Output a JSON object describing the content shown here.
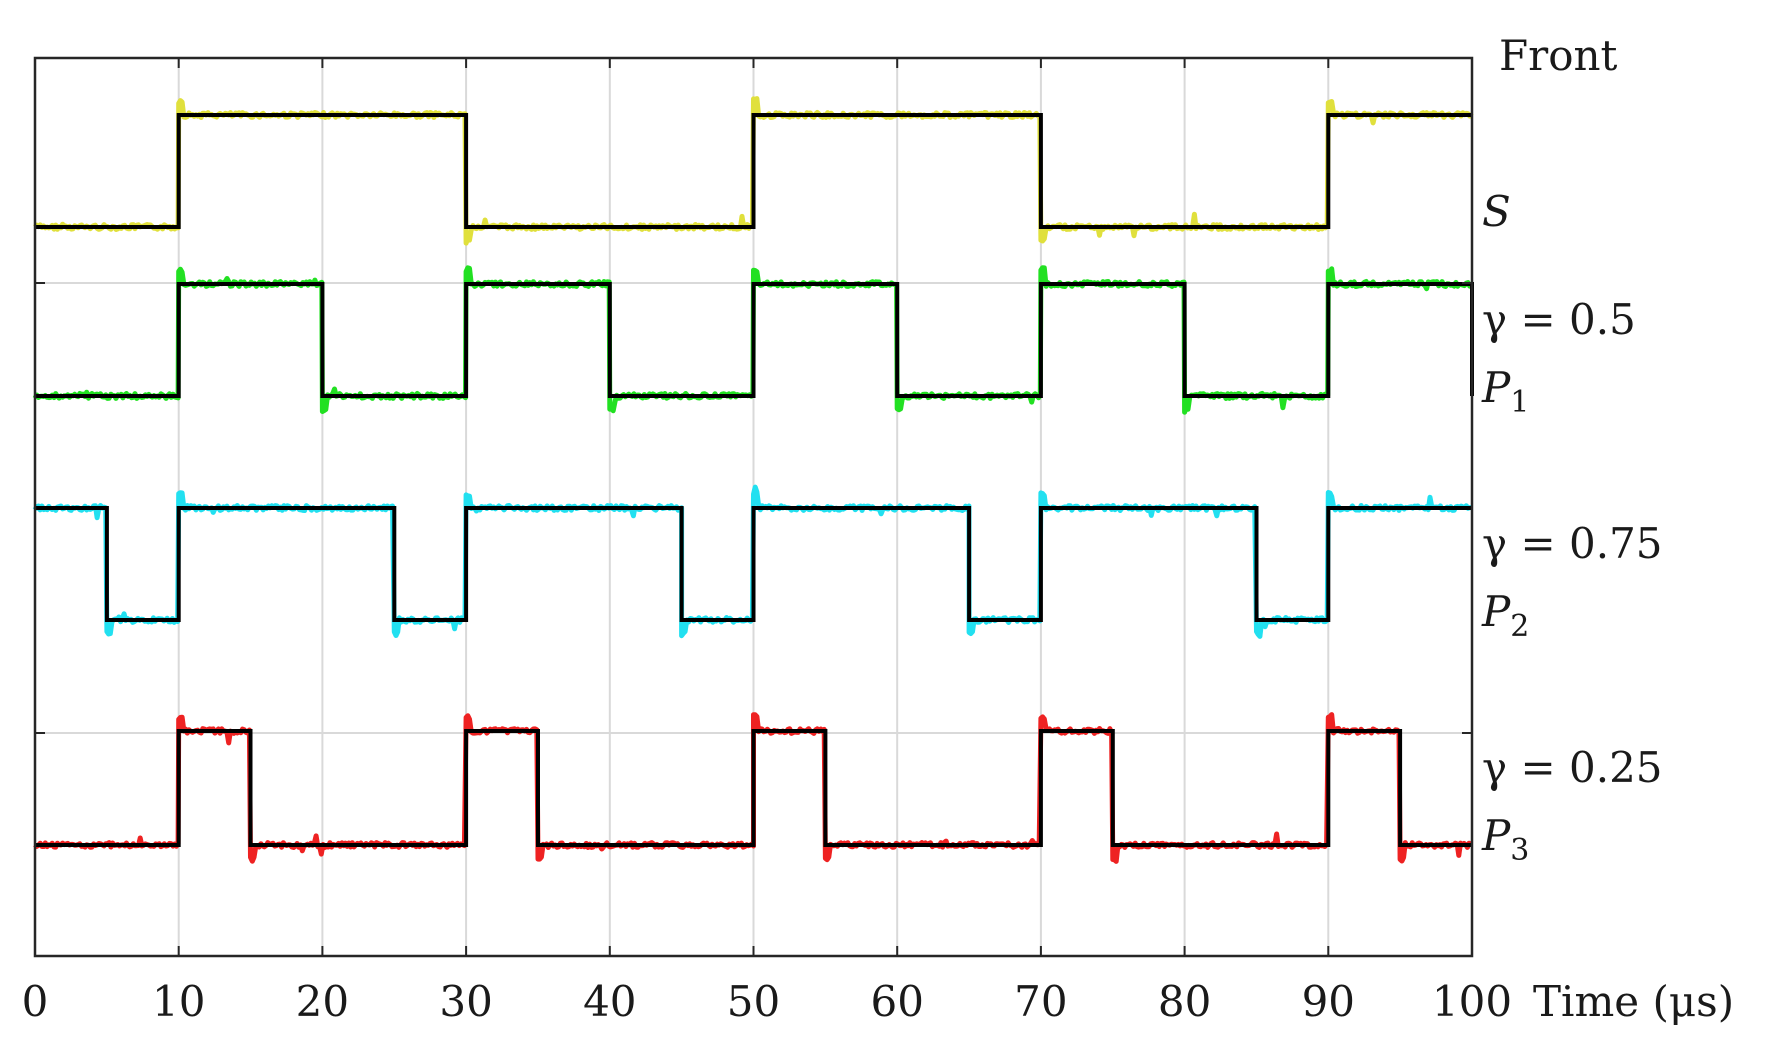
{
  "chart_data": {
    "type": "line",
    "title": "",
    "xlabel": "Time (μs)",
    "xlim": [
      0,
      100
    ],
    "x_ticks": [
      "0",
      "10",
      "20",
      "30",
      "40",
      "50",
      "60",
      "70",
      "80",
      "90",
      "100"
    ],
    "grid": true,
    "header_label": "Front",
    "series": [
      {
        "name": "S",
        "color": "#e0e03c",
        "fit_color": "#000000",
        "period": 40,
        "duty": 0.5,
        "high_start_offset": 10,
        "x": [
          0,
          10,
          10,
          30,
          30,
          50,
          50,
          70,
          70,
          90,
          90,
          100
        ],
        "values": [
          0,
          0,
          1,
          1,
          0,
          0,
          1,
          1,
          0,
          0,
          1,
          1
        ],
        "labels": [
          "S"
        ]
      },
      {
        "name": "P1",
        "color": "#22e022",
        "fit_color": "#000000",
        "x": [
          0,
          10,
          10,
          20,
          20,
          30,
          30,
          40,
          40,
          50,
          50,
          60,
          60,
          70,
          70,
          80,
          80,
          90,
          90,
          100,
          100
        ],
        "values": [
          0,
          0,
          1,
          1,
          0,
          0,
          1,
          1,
          0,
          0,
          1,
          1,
          0,
          0,
          1,
          1,
          0,
          0,
          1,
          1,
          0
        ],
        "labels": [
          "γ = 0.5",
          "P1"
        ]
      },
      {
        "name": "P2",
        "color": "#22e0f0",
        "fit_color": "#000000",
        "x": [
          0,
          5,
          5,
          10,
          10,
          25,
          25,
          30,
          30,
          45,
          45,
          50,
          50,
          65,
          65,
          70,
          70,
          85,
          85,
          90,
          90,
          100
        ],
        "values": [
          1,
          1,
          0,
          0,
          1,
          1,
          0,
          0,
          1,
          1,
          0,
          0,
          1,
          1,
          0,
          0,
          1,
          1,
          0,
          0,
          1,
          1
        ],
        "labels": [
          "γ = 0.75",
          "P2"
        ]
      },
      {
        "name": "P3",
        "color": "#ee2222",
        "fit_color": "#000000",
        "x": [
          0,
          10,
          10,
          15,
          15,
          30,
          30,
          35,
          35,
          50,
          50,
          55,
          55,
          70,
          70,
          75,
          75,
          90,
          90,
          95,
          95,
          100
        ],
        "values": [
          0,
          0,
          1,
          1,
          0,
          0,
          1,
          1,
          0,
          0,
          1,
          1,
          0,
          0,
          1,
          1,
          0,
          0,
          1,
          1,
          0,
          0
        ],
        "labels": [
          "γ = 0.25",
          "P3"
        ]
      }
    ]
  }
}
